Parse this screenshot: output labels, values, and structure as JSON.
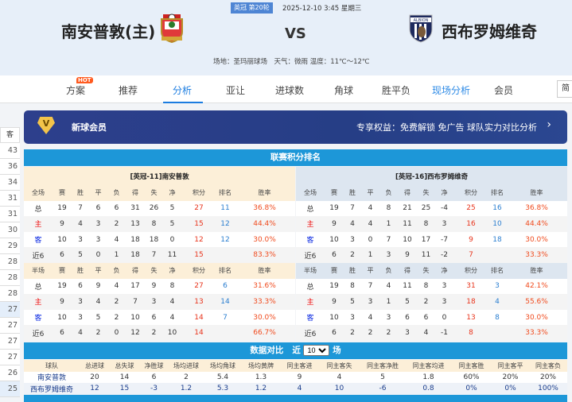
{
  "header": {
    "league_badge": "英冠 第20轮",
    "datetime": "2025-12-10 3:45 星期三",
    "home_team": "南安普敦(主)",
    "away_team": "西布罗姆维奇",
    "vs": "VS",
    "venue_weather": "场地：圣玛丽球场　天气：微雨 温度：11℃～12℃"
  },
  "nav": {
    "hot": "HOT",
    "items": [
      "方案",
      "推荐",
      "分析",
      "亚让",
      "进球数",
      "角球",
      "胜平负",
      "现场分析",
      "会员"
    ],
    "active": "分析",
    "lang": "简"
  },
  "sidebar": {
    "head": "客",
    "values": [
      "43",
      "36",
      "34",
      "31",
      "31",
      "30",
      "29",
      "28",
      "28",
      "28",
      "27",
      "27",
      "27",
      "27",
      "26",
      "25"
    ]
  },
  "banner": {
    "title": "新球会员",
    "benefits": "专享权益：免费解锁 免广告 球队实力对比分析"
  },
  "standings": {
    "title": "联赛积分排名",
    "home": {
      "label": "[英冠-11]南安普敦",
      "bg": "#fcefd8",
      "full_header": [
        "全场",
        "赛",
        "胜",
        "平",
        "负",
        "得",
        "失",
        "净",
        "积分",
        "排名",
        "胜率"
      ],
      "full": [
        [
          "总",
          "19",
          "7",
          "6",
          "6",
          "31",
          "26",
          "5",
          "27",
          "11",
          "36.8%"
        ],
        [
          "主",
          "9",
          "4",
          "3",
          "2",
          "13",
          "8",
          "5",
          "15",
          "12",
          "44.4%"
        ],
        [
          "客",
          "10",
          "3",
          "3",
          "4",
          "18",
          "18",
          "0",
          "12",
          "12",
          "30.0%"
        ],
        [
          "近6",
          "6",
          "5",
          "0",
          "1",
          "18",
          "7",
          "11",
          "15",
          "",
          "83.3%"
        ]
      ],
      "half_header": [
        "半场",
        "赛",
        "胜",
        "平",
        "负",
        "得",
        "失",
        "净",
        "积分",
        "排名",
        "胜率"
      ],
      "half": [
        [
          "总",
          "19",
          "6",
          "9",
          "4",
          "17",
          "9",
          "8",
          "27",
          "6",
          "31.6%"
        ],
        [
          "主",
          "9",
          "3",
          "4",
          "2",
          "7",
          "3",
          "4",
          "13",
          "14",
          "33.3%"
        ],
        [
          "客",
          "10",
          "3",
          "5",
          "2",
          "10",
          "6",
          "4",
          "14",
          "7",
          "30.0%"
        ],
        [
          "近6",
          "6",
          "4",
          "2",
          "0",
          "12",
          "2",
          "10",
          "14",
          "",
          "66.7%"
        ]
      ]
    },
    "away": {
      "label": "[英冠-16]西布罗姆维奇",
      "bg": "#dde6f0",
      "full_header": [
        "全场",
        "赛",
        "胜",
        "平",
        "负",
        "得",
        "失",
        "净",
        "积分",
        "排名",
        "胜率"
      ],
      "full": [
        [
          "总",
          "19",
          "7",
          "4",
          "8",
          "21",
          "25",
          "-4",
          "25",
          "16",
          "36.8%"
        ],
        [
          "主",
          "9",
          "4",
          "4",
          "1",
          "11",
          "8",
          "3",
          "16",
          "10",
          "44.4%"
        ],
        [
          "客",
          "10",
          "3",
          "0",
          "7",
          "10",
          "17",
          "-7",
          "9",
          "18",
          "30.0%"
        ],
        [
          "近6",
          "6",
          "2",
          "1",
          "3",
          "9",
          "11",
          "-2",
          "7",
          "",
          "33.3%"
        ]
      ],
      "half_header": [
        "半场",
        "赛",
        "胜",
        "平",
        "负",
        "得",
        "失",
        "净",
        "积分",
        "排名",
        "胜率"
      ],
      "half": [
        [
          "总",
          "19",
          "8",
          "7",
          "4",
          "11",
          "8",
          "3",
          "31",
          "3",
          "42.1%"
        ],
        [
          "主",
          "9",
          "5",
          "3",
          "1",
          "5",
          "2",
          "3",
          "18",
          "4",
          "55.6%"
        ],
        [
          "客",
          "10",
          "3",
          "4",
          "3",
          "6",
          "6",
          "0",
          "13",
          "8",
          "30.0%"
        ],
        [
          "近6",
          "6",
          "2",
          "2",
          "2",
          "3",
          "4",
          "-1",
          "8",
          "",
          "33.3%"
        ]
      ]
    }
  },
  "compare": {
    "title": "数据对比",
    "near": "近",
    "count": "10",
    "unit": "场",
    "headers": [
      "球队",
      "总进球",
      "总失球",
      "净胜球",
      "场均进球",
      "场均角球",
      "场均黄牌",
      "同主客进",
      "同主客失",
      "同主客净胜",
      "同主客均进",
      "同主客胜",
      "同主客平",
      "同主客负"
    ],
    "rows": [
      [
        "南安普敦",
        "20",
        "14",
        "6",
        "2",
        "5.4",
        "1.3",
        "9",
        "4",
        "5",
        "1.8",
        "60%",
        "20%",
        "20%"
      ],
      [
        "西布罗姆维奇",
        "12",
        "15",
        "-3",
        "1.2",
        "5.3",
        "1.2",
        "4",
        "10",
        "-6",
        "0.8",
        "0%",
        "0%",
        "100%"
      ]
    ]
  },
  "colors": {
    "accent": "#1b7ce0",
    "bar": "#1d97d8",
    "points": "#e8341c",
    "rank": "#2a7ed0",
    "winrate": "#f04b1e"
  }
}
